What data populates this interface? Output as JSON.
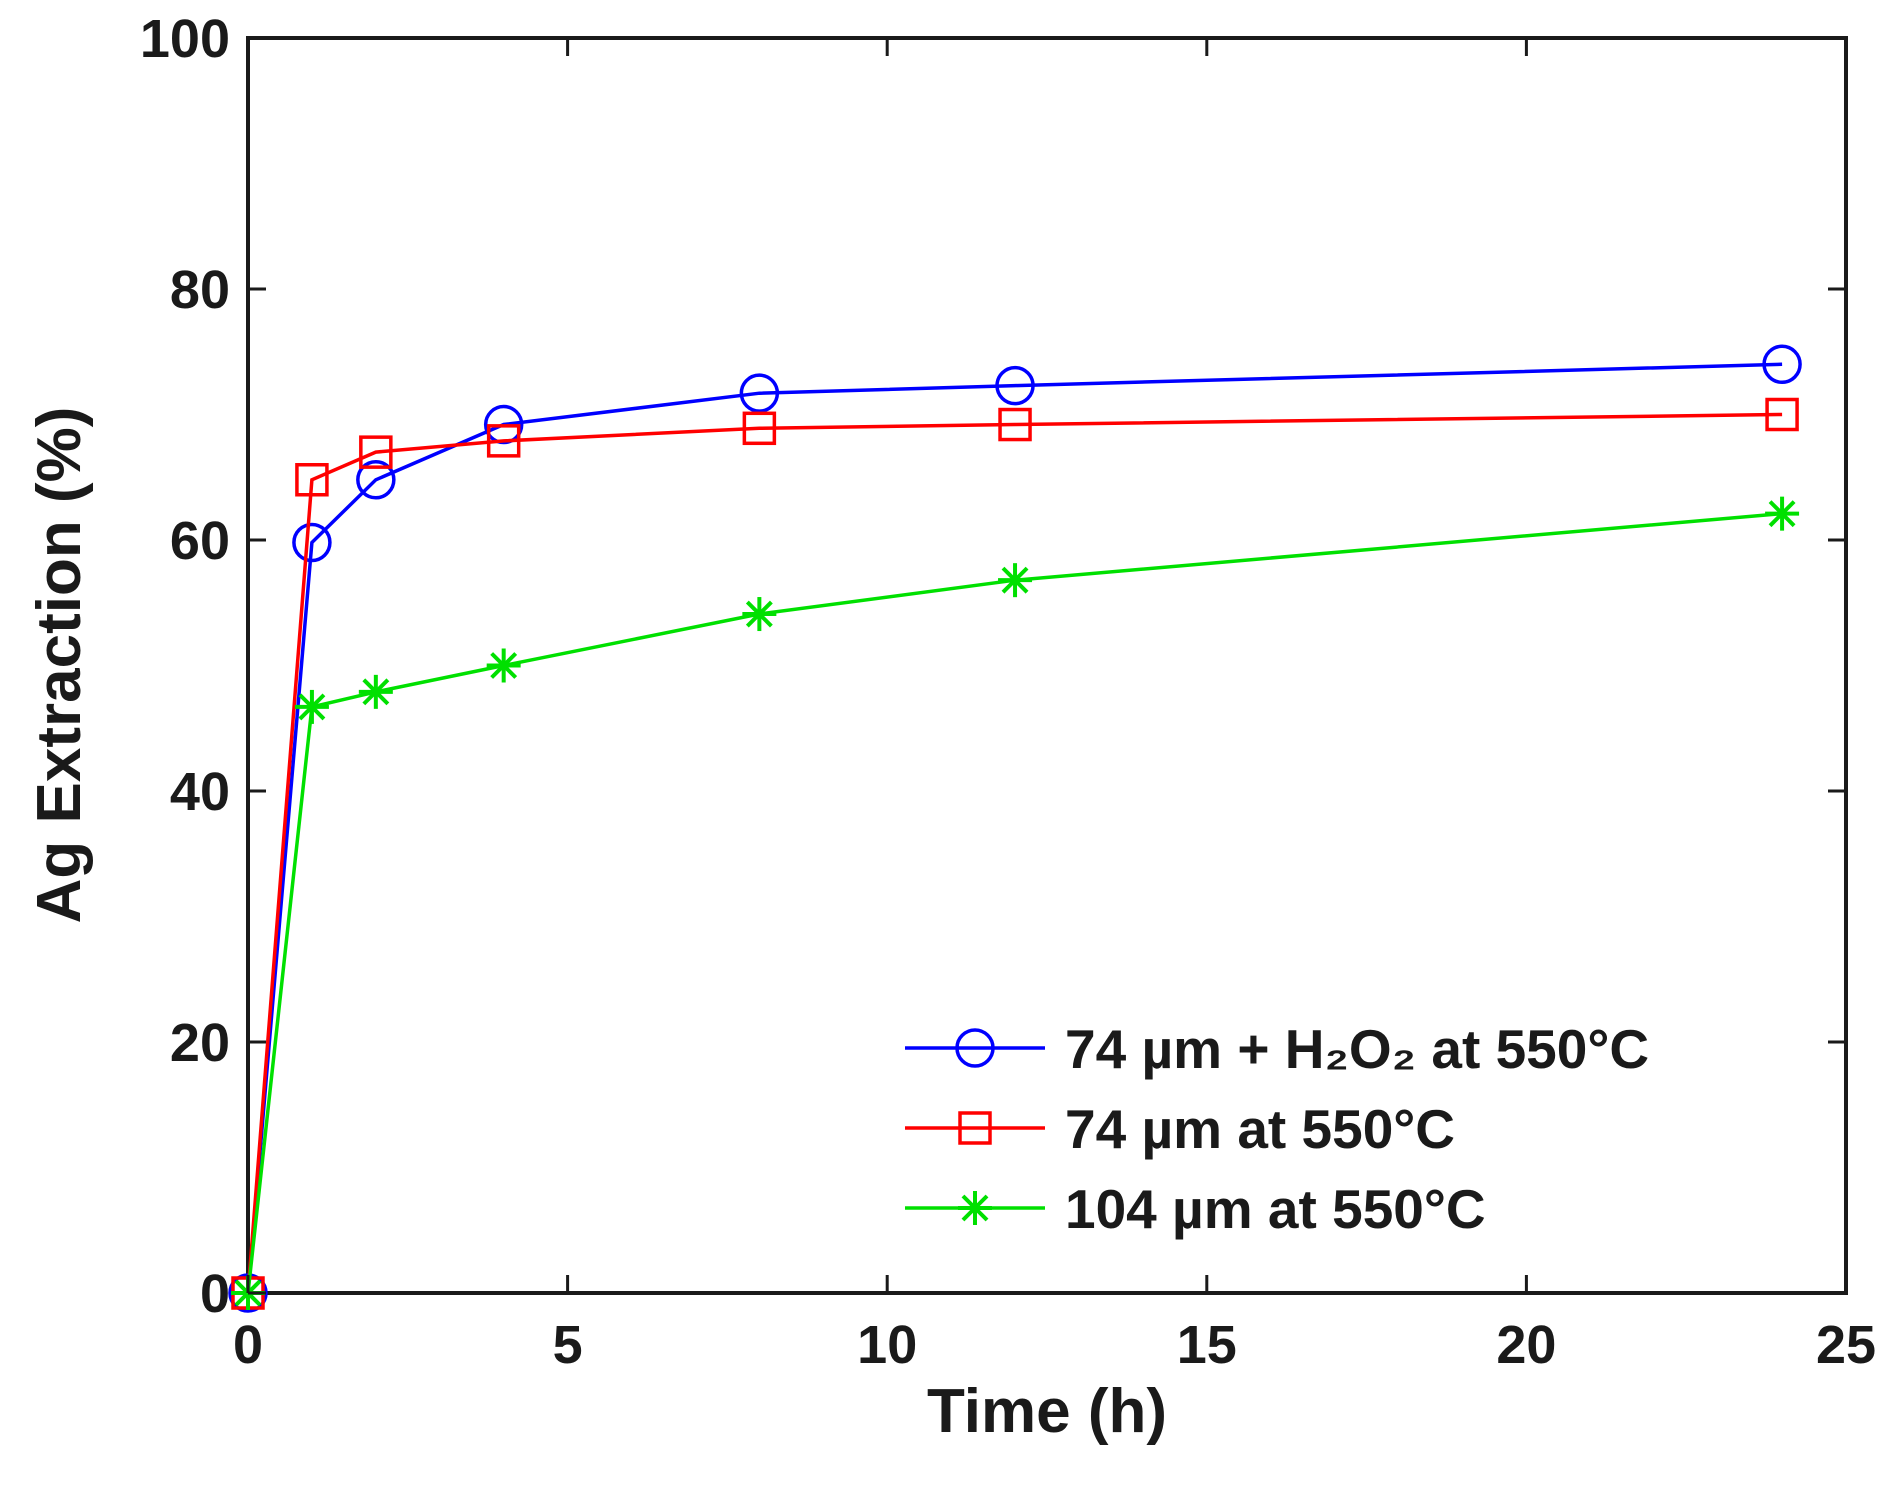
{
  "chart_data": {
    "type": "line",
    "title": "",
    "xlabel": "Time (h)",
    "ylabel": "Ag Extraction (%)",
    "xlim": [
      0,
      25
    ],
    "ylim": [
      0,
      100
    ],
    "xticks": [
      0,
      5,
      10,
      15,
      20,
      25
    ],
    "yticks": [
      0,
      20,
      40,
      60,
      80,
      100
    ],
    "grid": false,
    "legend_position": "bottom-right",
    "series": [
      {
        "name": "74 µm + H₂O₂ at 550°C",
        "color": "#0000ff",
        "marker": "circle",
        "x": [
          0,
          1,
          2,
          4,
          8,
          12,
          24
        ],
        "y": [
          0,
          59.8,
          64.8,
          69.2,
          71.7,
          72.3,
          74.0
        ]
      },
      {
        "name": "74 µm at 550°C",
        "color": "#ff0000",
        "marker": "square",
        "x": [
          0,
          1,
          2,
          4,
          8,
          12,
          24
        ],
        "y": [
          0,
          64.8,
          67.0,
          67.9,
          68.9,
          69.2,
          70.0
        ]
      },
      {
        "name": "104 µm at 550°C",
        "color": "#00e000",
        "marker": "asterisk",
        "x": [
          0,
          1,
          2,
          4,
          8,
          12,
          24
        ],
        "y": [
          0,
          46.7,
          47.9,
          50.0,
          54.1,
          56.8,
          62.1
        ]
      }
    ]
  }
}
